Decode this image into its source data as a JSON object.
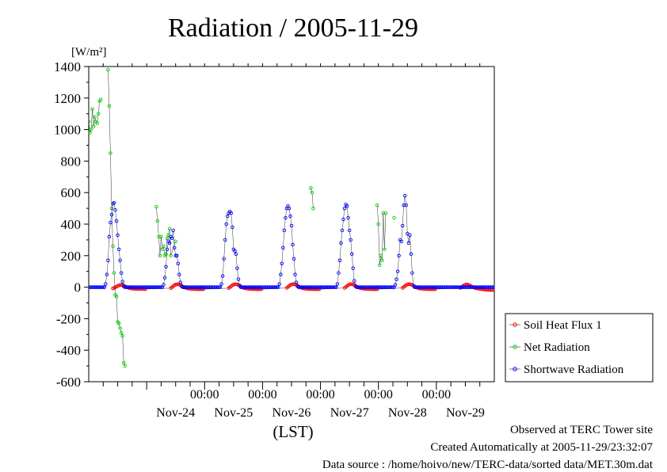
{
  "chart_data": {
    "type": "line",
    "title": "Radiation / 2005-11-29",
    "unit_label": "[W/m²]",
    "xlabel": "(LST)",
    "ylim": [
      -600,
      1400
    ],
    "yticks": [
      -600,
      -400,
      -200,
      0,
      200,
      400,
      600,
      800,
      1000,
      1200,
      1400
    ],
    "ytick_labels": [
      "-600",
      "-400",
      "-200",
      "0",
      "200",
      "400",
      "600",
      "800",
      "1000",
      "1200",
      "1400"
    ],
    "xlim": [
      "2005-11-23 00:00",
      "2005-11-30 00:00"
    ],
    "time_ticks": [
      {
        "time": "2005-11-25 00:00",
        "label": "00:00"
      },
      {
        "time": "2005-11-26 00:00",
        "label": "00:00"
      },
      {
        "time": "2005-11-27 00:00",
        "label": "00:00"
      },
      {
        "time": "2005-11-28 00:00",
        "label": "00:00"
      },
      {
        "time": "2005-11-29 00:00",
        "label": "00:00"
      }
    ],
    "day_labels": [
      {
        "time": "2005-11-24 12:00",
        "label": "Nov-24"
      },
      {
        "time": "2005-11-25 12:00",
        "label": "Nov-25"
      },
      {
        "time": "2005-11-26 12:00",
        "label": "Nov-26"
      },
      {
        "time": "2005-11-27 12:00",
        "label": "Nov-27"
      },
      {
        "time": "2005-11-28 12:00",
        "label": "Nov-28"
      },
      {
        "time": "2005-11-29 12:00",
        "label": "Nov-29"
      }
    ],
    "grid": false,
    "legend_position": "right",
    "series": [
      {
        "name": "Soil Heat Flux 1",
        "color": "#ff0000",
        "marker": "circle",
        "interval_minutes": 30,
        "kind": "diurnal",
        "daily": [
          {
            "date": "2005-11-23",
            "start": "10:00",
            "values": [
              -8,
              -5,
              -1,
              3,
              8,
              11,
              13,
              14,
              13,
              10,
              6,
              2,
              -1,
              -4,
              -6,
              -8,
              -9,
              -10,
              -10,
              -11,
              -11,
              -11,
              -11,
              -11,
              -11,
              -11,
              -12,
              -12
            ]
          },
          {
            "date": "2005-11-24",
            "start": "10:00",
            "values": [
              -6,
              0,
              6,
              12,
              16,
              18,
              18,
              16,
              13,
              9,
              4,
              0,
              -3,
              -6,
              -8,
              -9,
              -10,
              -11,
              -11,
              -12,
              -12,
              -12,
              -12,
              -13,
              -13,
              -13,
              -13,
              -13
            ]
          },
          {
            "date": "2005-11-25",
            "start": "10:00",
            "values": [
              -6,
              0,
              6,
              12,
              16,
              18,
              19,
              17,
              13,
              9,
              4,
              0,
              -3,
              -6,
              -8,
              -9,
              -10,
              -11,
              -11,
              -12,
              -12,
              -12,
              -12,
              -13,
              -13,
              -13,
              -13,
              -13
            ]
          },
          {
            "date": "2005-11-26",
            "start": "10:00",
            "values": [
              -5,
              1,
              7,
              13,
              17,
              19,
              19,
              17,
              13,
              9,
              4,
              0,
              -3,
              -6,
              -8,
              -9,
              -10,
              -11,
              -11,
              -12,
              -12,
              -12,
              -12,
              -13,
              -13,
              -13,
              -13,
              -13
            ]
          },
          {
            "date": "2005-11-27",
            "start": "10:00",
            "values": [
              -5,
              1,
              7,
              13,
              17,
              19,
              19,
              17,
              13,
              9,
              4,
              0,
              -3,
              -6,
              -8,
              -9,
              -10,
              -11,
              -11,
              -12,
              -12,
              -12,
              -12,
              -13,
              -13,
              -13,
              -13,
              -13
            ]
          },
          {
            "date": "2005-11-28",
            "start": "10:00",
            "values": [
              -5,
              1,
              7,
              13,
              17,
              19,
              19,
              17,
              13,
              9,
              4,
              0,
              -3,
              -6,
              -8,
              -9,
              -10,
              -11,
              -11,
              -12,
              -12,
              -12,
              -12,
              -13,
              -13,
              -13,
              -13,
              -13
            ]
          },
          {
            "date": "2005-11-29",
            "start": "10:00",
            "values": [
              -5,
              1,
              7,
              12,
              15,
              17,
              16,
              13,
              9,
              5,
              1,
              -2,
              -5,
              -7,
              -9,
              -10,
              -11,
              -12,
              -13,
              -14,
              -15,
              -16,
              -16,
              -17,
              -17,
              -18,
              -18,
              -18
            ]
          }
        ]
      },
      {
        "name": "Net Radiation",
        "color": "#00cc00",
        "marker": "circle",
        "kind": "points",
        "points": [
          [
            "2005-11-23 00:00",
            1050
          ],
          [
            "2005-11-23 00:30",
            980
          ],
          [
            "2005-11-23 01:00",
            1000
          ],
          [
            "2005-11-23 01:30",
            1130
          ],
          [
            "2005-11-23 02:00",
            1020
          ],
          [
            "2005-11-23 02:30",
            1080
          ],
          [
            "2005-11-23 03:00",
            1050
          ],
          [
            "2005-11-23 03:30",
            1040
          ],
          [
            "2005-11-23 04:00",
            1100
          ],
          [
            "2005-11-23 04:30",
            1180
          ],
          [
            "2005-11-23 05:00",
            1190
          ],
          [
            "2005-11-23 08:00",
            1380
          ],
          [
            "2005-11-23 08:30",
            1150
          ],
          [
            "2005-11-23 09:00",
            850
          ],
          [
            "2005-11-23 09:30",
            500
          ],
          [
            "2005-11-23 10:00",
            260
          ],
          [
            "2005-11-23 10:30",
            90
          ],
          [
            "2005-11-23 11:00",
            -50
          ],
          [
            "2005-11-23 11:30",
            -60
          ],
          [
            "2005-11-23 12:00",
            -220
          ],
          [
            "2005-11-23 12:30",
            -230
          ],
          [
            "2005-11-23 13:00",
            -260
          ],
          [
            "2005-11-23 13:30",
            -290
          ],
          [
            "2005-11-23 14:00",
            -310
          ],
          [
            "2005-11-23 14:30",
            -480
          ],
          [
            "2005-11-23 15:00",
            -500
          ],
          [
            "2005-11-24 04:00",
            510
          ],
          [
            "2005-11-24 04:30",
            420
          ],
          [
            "2005-11-24 05:00",
            320
          ],
          [
            "2005-11-24 05:30",
            200
          ],
          [
            "2005-11-24 06:00",
            320
          ],
          [
            "2005-11-24 06:30",
            240
          ],
          [
            "2005-11-24 07:00",
            260
          ],
          [
            "2005-11-24 07:30",
            200
          ],
          [
            "2005-11-24 08:00",
            210
          ],
          [
            "2005-11-24 08:30",
            310
          ],
          [
            "2005-11-24 09:00",
            330
          ],
          [
            "2005-11-24 09:30",
            370
          ],
          [
            "2005-11-24 10:00",
            200
          ],
          [
            "2005-11-24 12:00",
            290
          ],
          [
            "2005-11-26 20:00",
            630
          ],
          [
            "2005-11-26 20:30",
            600
          ],
          [
            "2005-11-26 21:00",
            500
          ],
          [
            "2005-11-27 23:30",
            520
          ],
          [
            "2005-11-28 00:00",
            400
          ],
          [
            "2005-11-28 00:30",
            140
          ],
          [
            "2005-11-28 01:00",
            200
          ],
          [
            "2005-11-28 01:30",
            170
          ],
          [
            "2005-11-28 02:00",
            470
          ],
          [
            "2005-11-28 02:30",
            240
          ],
          [
            "2005-11-28 03:00",
            470
          ],
          [
            "2005-11-28 06:30",
            440
          ]
        ]
      },
      {
        "name": "Shortwave Radiation",
        "color": "#0000ff",
        "marker": "circle",
        "interval_minutes": 30,
        "kind": "diurnal",
        "daily": [
          {
            "date": "2005-11-23",
            "start": "07:00",
            "values": [
              20,
              80,
              170,
              320,
              410,
              460,
              530,
              535,
              490,
              420,
              330,
              240,
              170,
              90,
              35,
              5
            ]
          },
          {
            "date": "2005-11-24",
            "start": "07:00",
            "values": [
              15,
              60,
              130,
              240,
              290,
              280,
              320,
              310,
              360,
              250,
              200,
              200,
              150,
              80,
              30,
              5
            ]
          },
          {
            "date": "2005-11-25",
            "start": "07:00",
            "values": [
              20,
              70,
              180,
              300,
              400,
              450,
              470,
              480,
              470,
              380,
              240,
              230,
              210,
              120,
              50,
              10
            ]
          },
          {
            "date": "2005-11-26",
            "start": "07:00",
            "values": [
              20,
              80,
              150,
              250,
              360,
              440,
              500,
              515,
              500,
              450,
              390,
              270,
              180,
              80,
              30,
              5
            ]
          },
          {
            "date": "2005-11-27",
            "start": "07:00",
            "values": [
              20,
              90,
              170,
              280,
              360,
              430,
              500,
              525,
              515,
              440,
              360,
              300,
              210,
              120,
              40,
              5
            ]
          },
          {
            "date": "2005-11-28",
            "start": "07:00",
            "values": [
              15,
              50,
              100,
              200,
              300,
              290,
              390,
              520,
              580,
              520,
              340,
              280,
              330,
              210,
              90,
              10
            ]
          }
        ]
      }
    ]
  },
  "footer": {
    "observed": "Observed at TERC Tower site",
    "created": "Created Automatically at 2005-11-29/23:32:07",
    "source": "Data source : /home/hoivo/new/TERC-data/sorted  data/MET.30m.dat"
  }
}
